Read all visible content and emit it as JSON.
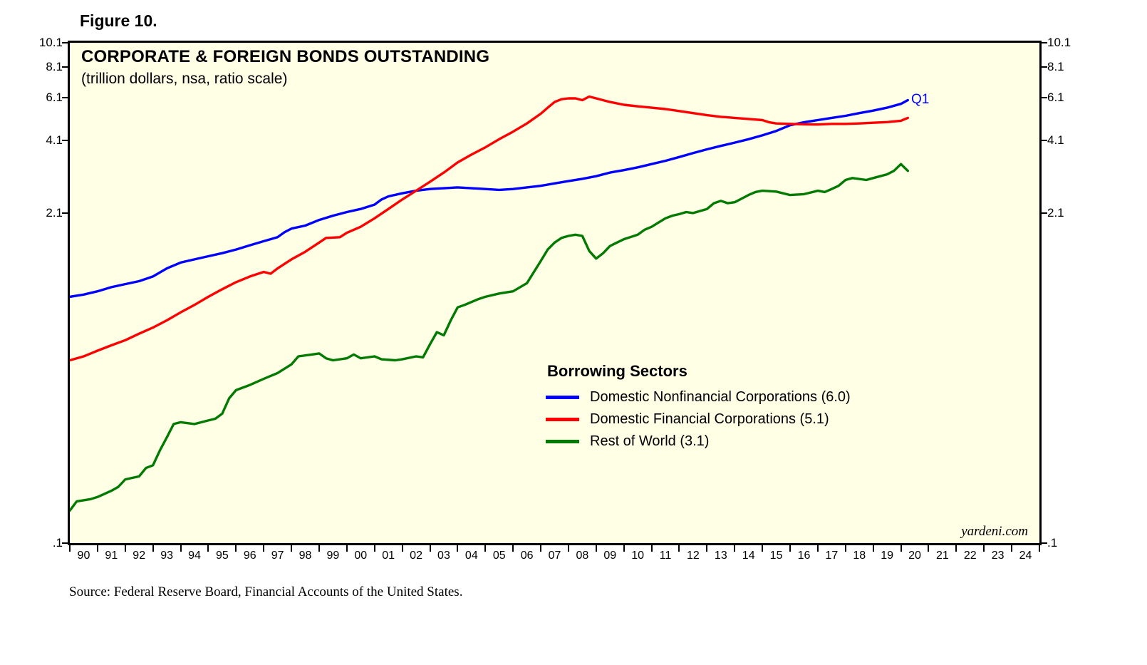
{
  "figure_label": "Figure 10.",
  "source_note": "Source: Federal Reserve Board, Financial Accounts of the United States.",
  "chart_data": {
    "type": "line",
    "title": "CORPORATE & FOREIGN BONDS OUTSTANDING",
    "subtitle": "(trillion dollars, nsa, ratio scale)",
    "legend_title": "Borrowing Sectors",
    "legend_position": "inside-right-center",
    "end_label": "Q1",
    "end_label_color": "#0000ff",
    "watermark": "yardeni.com",
    "background_color": "#ffffe6",
    "frame_color": "#000000",
    "y_scale": "log",
    "grid": "off",
    "ylim": [
      0.1,
      10.1
    ],
    "xlim": [
      1990,
      2025
    ],
    "y_ticks": [
      "10.1",
      "8.1",
      "6.1",
      "4.1",
      "2.1",
      ".1"
    ],
    "y_tick_values": [
      10.1,
      8.1,
      6.1,
      4.1,
      2.1,
      0.1
    ],
    "x_tick_labels": [
      "90",
      "91",
      "92",
      "93",
      "94",
      "95",
      "96",
      "97",
      "98",
      "99",
      "00",
      "01",
      "02",
      "03",
      "04",
      "05",
      "06",
      "07",
      "08",
      "09",
      "10",
      "11",
      "12",
      "13",
      "14",
      "15",
      "16",
      "17",
      "18",
      "19",
      "20",
      "21",
      "22",
      "23",
      "24"
    ],
    "x_unit": "year (quarterly data, ends Q1 2020)",
    "series": [
      {
        "name": "Domestic Nonfinancial Corporations (6.0)",
        "color": "#0000ff",
        "end_value": 6.0,
        "points": [
          [
            1990,
            0.97
          ],
          [
            1990.5,
            0.99
          ],
          [
            1991,
            1.02
          ],
          [
            1991.5,
            1.06
          ],
          [
            1992,
            1.09
          ],
          [
            1992.5,
            1.12
          ],
          [
            1993,
            1.17
          ],
          [
            1993.5,
            1.26
          ],
          [
            1994,
            1.33
          ],
          [
            1994.5,
            1.37
          ],
          [
            1995,
            1.41
          ],
          [
            1995.5,
            1.45
          ],
          [
            1996,
            1.5
          ],
          [
            1996.5,
            1.56
          ],
          [
            1997,
            1.62
          ],
          [
            1997.5,
            1.68
          ],
          [
            1997.75,
            1.76
          ],
          [
            1998,
            1.82
          ],
          [
            1998.5,
            1.87
          ],
          [
            1999,
            1.97
          ],
          [
            1999.5,
            2.05
          ],
          [
            2000,
            2.12
          ],
          [
            2000.5,
            2.18
          ],
          [
            2001,
            2.27
          ],
          [
            2001.25,
            2.38
          ],
          [
            2001.5,
            2.45
          ],
          [
            2002,
            2.52
          ],
          [
            2002.5,
            2.58
          ],
          [
            2003,
            2.62
          ],
          [
            2003.5,
            2.64
          ],
          [
            2004,
            2.66
          ],
          [
            2004.5,
            2.64
          ],
          [
            2005,
            2.62
          ],
          [
            2005.5,
            2.6
          ],
          [
            2006,
            2.62
          ],
          [
            2006.5,
            2.66
          ],
          [
            2007,
            2.7
          ],
          [
            2007.5,
            2.76
          ],
          [
            2008,
            2.82
          ],
          [
            2008.5,
            2.88
          ],
          [
            2009,
            2.95
          ],
          [
            2009.5,
            3.05
          ],
          [
            2010,
            3.12
          ],
          [
            2010.5,
            3.2
          ],
          [
            2011,
            3.3
          ],
          [
            2011.5,
            3.4
          ],
          [
            2012,
            3.52
          ],
          [
            2012.5,
            3.65
          ],
          [
            2013,
            3.78
          ],
          [
            2013.5,
            3.9
          ],
          [
            2014,
            4.02
          ],
          [
            2014.5,
            4.15
          ],
          [
            2015,
            4.3
          ],
          [
            2015.5,
            4.48
          ],
          [
            2016,
            4.72
          ],
          [
            2016.5,
            4.85
          ],
          [
            2017,
            4.95
          ],
          [
            2017.5,
            5.05
          ],
          [
            2018,
            5.15
          ],
          [
            2018.5,
            5.28
          ],
          [
            2019,
            5.4
          ],
          [
            2019.5,
            5.55
          ],
          [
            2020,
            5.75
          ],
          [
            2020.25,
            5.95
          ]
        ]
      },
      {
        "name": "Domestic Financial Corporations (5.1)",
        "color": "#ff0000",
        "end_value": 5.1,
        "points": [
          [
            1990,
            0.54
          ],
          [
            1990.5,
            0.56
          ],
          [
            1991,
            0.59
          ],
          [
            1991.5,
            0.62
          ],
          [
            1992,
            0.65
          ],
          [
            1992.5,
            0.69
          ],
          [
            1993,
            0.73
          ],
          [
            1993.5,
            0.78
          ],
          [
            1994,
            0.84
          ],
          [
            1994.5,
            0.9
          ],
          [
            1995,
            0.97
          ],
          [
            1995.5,
            1.04
          ],
          [
            1996,
            1.11
          ],
          [
            1996.5,
            1.17
          ],
          [
            1997,
            1.22
          ],
          [
            1997.25,
            1.2
          ],
          [
            1997.5,
            1.26
          ],
          [
            1998,
            1.37
          ],
          [
            1998.5,
            1.47
          ],
          [
            1999,
            1.6
          ],
          [
            1999.25,
            1.67
          ],
          [
            1999.75,
            1.68
          ],
          [
            2000,
            1.75
          ],
          [
            2000.5,
            1.85
          ],
          [
            2001,
            2.0
          ],
          [
            2001.5,
            2.18
          ],
          [
            2002,
            2.38
          ],
          [
            2002.5,
            2.58
          ],
          [
            2003,
            2.8
          ],
          [
            2003.5,
            3.05
          ],
          [
            2004,
            3.35
          ],
          [
            2004.5,
            3.6
          ],
          [
            2005,
            3.85
          ],
          [
            2005.5,
            4.15
          ],
          [
            2006,
            4.45
          ],
          [
            2006.5,
            4.8
          ],
          [
            2007,
            5.25
          ],
          [
            2007.25,
            5.55
          ],
          [
            2007.5,
            5.85
          ],
          [
            2007.75,
            6.0
          ],
          [
            2008,
            6.05
          ],
          [
            2008.25,
            6.05
          ],
          [
            2008.5,
            5.95
          ],
          [
            2008.75,
            6.15
          ],
          [
            2009,
            6.05
          ],
          [
            2009.5,
            5.85
          ],
          [
            2010,
            5.7
          ],
          [
            2010.5,
            5.62
          ],
          [
            2011,
            5.55
          ],
          [
            2011.5,
            5.48
          ],
          [
            2012,
            5.38
          ],
          [
            2012.5,
            5.28
          ],
          [
            2013,
            5.18
          ],
          [
            2013.5,
            5.1
          ],
          [
            2014,
            5.05
          ],
          [
            2014.5,
            5.0
          ],
          [
            2015,
            4.95
          ],
          [
            2015.25,
            4.85
          ],
          [
            2015.5,
            4.8
          ],
          [
            2016,
            4.78
          ],
          [
            2016.5,
            4.76
          ],
          [
            2017,
            4.75
          ],
          [
            2017.5,
            4.78
          ],
          [
            2018,
            4.78
          ],
          [
            2018.5,
            4.8
          ],
          [
            2019,
            4.83
          ],
          [
            2019.5,
            4.86
          ],
          [
            2020,
            4.92
          ],
          [
            2020.25,
            5.05
          ]
        ]
      },
      {
        "name": "Rest of World (3.1)",
        "color": "#007a00",
        "end_value": 3.1,
        "points": [
          [
            1990,
            0.135
          ],
          [
            1990.25,
            0.147
          ],
          [
            1990.75,
            0.15
          ],
          [
            1991,
            0.153
          ],
          [
            1991.5,
            0.162
          ],
          [
            1991.75,
            0.168
          ],
          [
            1992,
            0.18
          ],
          [
            1992.5,
            0.185
          ],
          [
            1992.75,
            0.2
          ],
          [
            1993,
            0.205
          ],
          [
            1993.25,
            0.235
          ],
          [
            1993.5,
            0.265
          ],
          [
            1993.75,
            0.3
          ],
          [
            1994,
            0.305
          ],
          [
            1994.5,
            0.3
          ],
          [
            1995,
            0.31
          ],
          [
            1995.25,
            0.315
          ],
          [
            1995.5,
            0.33
          ],
          [
            1995.75,
            0.38
          ],
          [
            1996,
            0.41
          ],
          [
            1996.5,
            0.43
          ],
          [
            1997,
            0.455
          ],
          [
            1997.5,
            0.48
          ],
          [
            1998,
            0.52
          ],
          [
            1998.25,
            0.56
          ],
          [
            1998.75,
            0.57
          ],
          [
            1999,
            0.575
          ],
          [
            1999.25,
            0.55
          ],
          [
            1999.5,
            0.54
          ],
          [
            2000,
            0.55
          ],
          [
            2000.25,
            0.57
          ],
          [
            2000.5,
            0.55
          ],
          [
            2001,
            0.56
          ],
          [
            2001.25,
            0.545
          ],
          [
            2001.75,
            0.54
          ],
          [
            2002,
            0.545
          ],
          [
            2002.5,
            0.56
          ],
          [
            2002.75,
            0.555
          ],
          [
            2003,
            0.625
          ],
          [
            2003.25,
            0.7
          ],
          [
            2003.5,
            0.68
          ],
          [
            2003.75,
            0.78
          ],
          [
            2004,
            0.88
          ],
          [
            2004.25,
            0.9
          ],
          [
            2004.75,
            0.95
          ],
          [
            2005,
            0.97
          ],
          [
            2005.5,
            1.0
          ],
          [
            2006,
            1.02
          ],
          [
            2006.5,
            1.1
          ],
          [
            2007,
            1.35
          ],
          [
            2007.25,
            1.5
          ],
          [
            2007.5,
            1.6
          ],
          [
            2007.75,
            1.67
          ],
          [
            2008,
            1.7
          ],
          [
            2008.25,
            1.72
          ],
          [
            2008.5,
            1.7
          ],
          [
            2008.75,
            1.48
          ],
          [
            2009,
            1.38
          ],
          [
            2009.25,
            1.45
          ],
          [
            2009.5,
            1.55
          ],
          [
            2009.75,
            1.6
          ],
          [
            2010,
            1.65
          ],
          [
            2010.5,
            1.72
          ],
          [
            2010.75,
            1.8
          ],
          [
            2011,
            1.85
          ],
          [
            2011.5,
            2.0
          ],
          [
            2011.75,
            2.05
          ],
          [
            2012,
            2.08
          ],
          [
            2012.25,
            2.12
          ],
          [
            2012.5,
            2.1
          ],
          [
            2013,
            2.18
          ],
          [
            2013.25,
            2.3
          ],
          [
            2013.5,
            2.35
          ],
          [
            2013.75,
            2.3
          ],
          [
            2014,
            2.32
          ],
          [
            2014.5,
            2.48
          ],
          [
            2014.75,
            2.55
          ],
          [
            2015,
            2.58
          ],
          [
            2015.5,
            2.56
          ],
          [
            2016,
            2.48
          ],
          [
            2016.5,
            2.5
          ],
          [
            2017,
            2.58
          ],
          [
            2017.25,
            2.55
          ],
          [
            2017.5,
            2.62
          ],
          [
            2017.75,
            2.7
          ],
          [
            2018,
            2.85
          ],
          [
            2018.25,
            2.9
          ],
          [
            2018.75,
            2.85
          ],
          [
            2019,
            2.9
          ],
          [
            2019.5,
            3.0
          ],
          [
            2019.75,
            3.1
          ],
          [
            2020,
            3.3
          ],
          [
            2020.25,
            3.1
          ]
        ]
      }
    ]
  }
}
